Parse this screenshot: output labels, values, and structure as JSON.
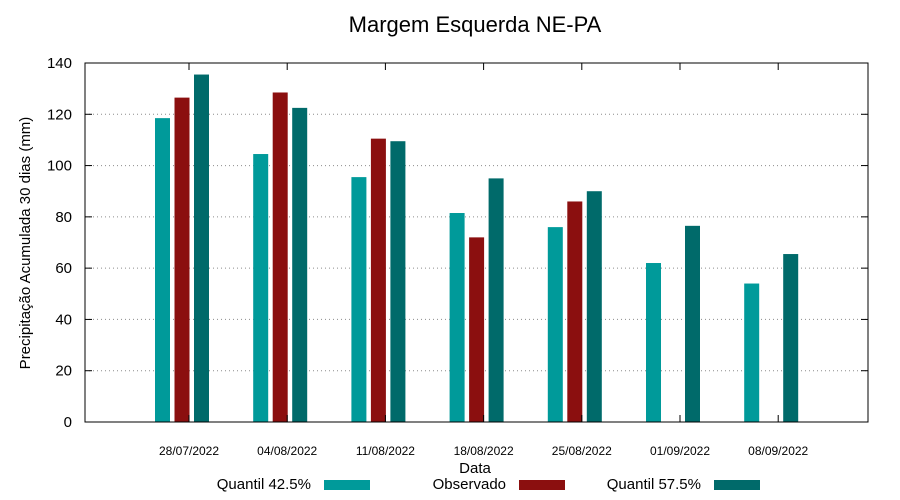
{
  "chart_data": {
    "type": "bar",
    "title": "Margem Esquerda NE-PA",
    "xlabel": "Data",
    "ylabel": "Precipitação Acumulada 30 dias (mm)",
    "ylim": [
      0,
      140
    ],
    "yticks": [
      0,
      20,
      40,
      60,
      80,
      100,
      120,
      140
    ],
    "grid": true,
    "legend_position": "bottom",
    "categories": [
      "28/07/2022",
      "04/08/2022",
      "11/08/2022",
      "18/08/2022",
      "25/08/2022",
      "01/09/2022",
      "08/09/2022"
    ],
    "series": [
      {
        "name": "Quantil 42.5%",
        "color": "#009a9a",
        "values": [
          118.5,
          104.5,
          95.5,
          81.5,
          76,
          62,
          54
        ]
      },
      {
        "name": "Observado",
        "color": "#8b0f0f",
        "values": [
          126.5,
          128.5,
          110.5,
          72,
          86,
          null,
          null
        ]
      },
      {
        "name": "Quantil 57.5%",
        "color": "#006a6a",
        "values": [
          135.5,
          122.5,
          109.5,
          95,
          90,
          76.5,
          65.5
        ]
      }
    ]
  }
}
